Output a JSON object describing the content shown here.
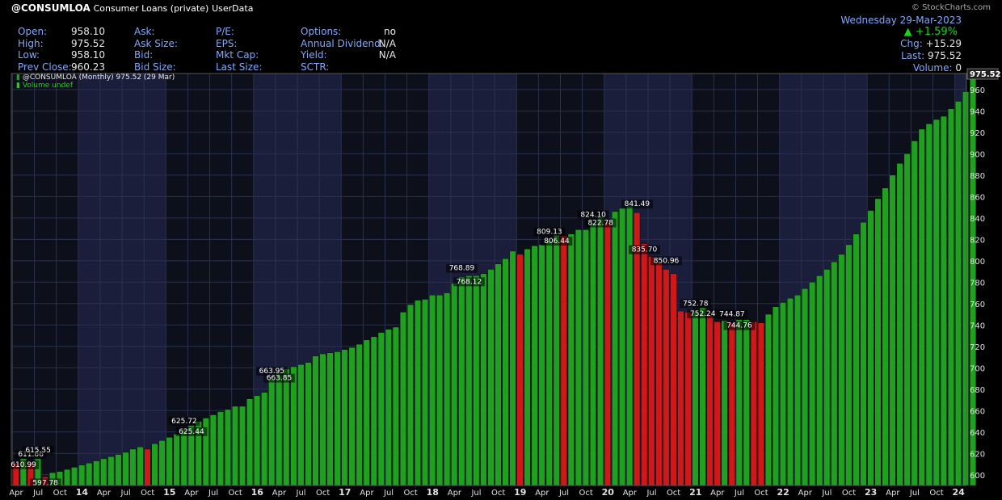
{
  "header": {
    "symbol": "@CONSUMLOA",
    "name": "Consumer Loans (private)",
    "source": "UserData",
    "logo": "© StockCharts.com",
    "quote_left": [
      {
        "label": "Open:",
        "value": "958.10"
      },
      {
        "label": "High:",
        "value": "975.52"
      },
      {
        "label": "Low:",
        "value": "958.10"
      },
      {
        "label": "Prev Close:",
        "value": "960.23"
      }
    ],
    "quote_mid": [
      {
        "label": "Ask:",
        "value": ""
      },
      {
        "label": "Ask Size:",
        "value": ""
      },
      {
        "label": "Bid:",
        "value": ""
      },
      {
        "label": "Bid Size:",
        "value": ""
      }
    ],
    "quote_mid2": [
      {
        "label": "P/E:",
        "value": ""
      },
      {
        "label": "EPS:",
        "value": ""
      },
      {
        "label": "Mkt Cap:",
        "value": ""
      },
      {
        "label": "Last Size:",
        "value": ""
      }
    ],
    "quote_right": [
      {
        "label": "Options:",
        "value": "no"
      },
      {
        "label": "Annual Dividend:",
        "value": "N/A"
      },
      {
        "label": "Yield:",
        "value": "N/A"
      },
      {
        "label": "SCTR:",
        "value": ""
      }
    ],
    "date": "Wednesday  29-Mar-2023",
    "change_pct": "+1.59%",
    "chg": {
      "label": "Chg:",
      "value": "+15.29"
    },
    "last": {
      "label": "Last:",
      "value": "975.52"
    },
    "volume": {
      "label": "Volume:",
      "value": "0"
    }
  },
  "legend": {
    "series": "@CONSUMLOA (Monthly) 975.52 (29 Mar)",
    "volume": "Volume undef"
  },
  "colors": {
    "up": "#1fa01f",
    "down": "#d01818",
    "background": "#000000",
    "plot": "#0d0f1a",
    "band": "#1a1e3a",
    "grid": "#2b3150",
    "axis_text": "#e0e0e0"
  },
  "chart_data": {
    "type": "bar",
    "frequency": "monthly",
    "start": "2013-04",
    "ylim": [
      590,
      975
    ],
    "yticks": [
      600,
      620,
      640,
      660,
      680,
      700,
      720,
      740,
      760,
      780,
      800,
      820,
      840,
      860,
      880,
      900,
      920,
      940,
      960
    ],
    "last_value_label": "975.52",
    "xticks": [
      "Apr",
      "Jul",
      "Oct",
      "14",
      "Apr",
      "Jul",
      "Oct",
      "15",
      "Apr",
      "Jul",
      "Oct",
      "16",
      "Apr",
      "Jul",
      "Oct",
      "17",
      "Apr",
      "Jul",
      "Oct",
      "18",
      "Apr",
      "Jul",
      "Oct",
      "19",
      "Apr",
      "Jul",
      "Oct",
      "20",
      "Apr",
      "Jul",
      "Oct",
      "21",
      "Apr",
      "Jul",
      "Oct",
      "22",
      "Apr",
      "Jul",
      "Oct",
      "23",
      "Apr",
      "Jul",
      "Oct",
      "24"
    ],
    "values": [
      611,
      615,
      611,
      615,
      598,
      602,
      603,
      605,
      607,
      609,
      611,
      613,
      615,
      617,
      619,
      621,
      624,
      626,
      624,
      629,
      632,
      635,
      638,
      642,
      646,
      650,
      653,
      656,
      659,
      661,
      664,
      664,
      671,
      674,
      677,
      689,
      696,
      699,
      701,
      703,
      705,
      711,
      713,
      714,
      715,
      717,
      719,
      722,
      726,
      729,
      733,
      736,
      738,
      752,
      759,
      763,
      764,
      768,
      768,
      770,
      779,
      785,
      786,
      786,
      788,
      792,
      797,
      802,
      809,
      806,
      811,
      814,
      815,
      819,
      824,
      823,
      825,
      829,
      829,
      835,
      841,
      836,
      846,
      849,
      851,
      845,
      816,
      804,
      798,
      792,
      788,
      753,
      752,
      752,
      756,
      749,
      743,
      744,
      742,
      745,
      745,
      743,
      742,
      750,
      757,
      761,
      765,
      768,
      774,
      780,
      786,
      792,
      799,
      806,
      815,
      825,
      836,
      847,
      858,
      868,
      880,
      891,
      900,
      912,
      923,
      928,
      932,
      935,
      942,
      949,
      958,
      975
    ],
    "annotations": [
      {
        "i": 1,
        "text": "610.99",
        "pos": "below"
      },
      {
        "i": 2,
        "text": "611.66",
        "pos": "above"
      },
      {
        "i": 3,
        "text": "615.55",
        "pos": "above"
      },
      {
        "i": 4,
        "text": "597.78",
        "pos": "below"
      },
      {
        "i": 23,
        "text": "625.72",
        "pos": "above"
      },
      {
        "i": 24,
        "text": "625.44",
        "pos": "below"
      },
      {
        "i": 35,
        "text": "663.95",
        "pos": "above"
      },
      {
        "i": 36,
        "text": "663.85",
        "pos": "below"
      },
      {
        "i": 61,
        "text": "768.89",
        "pos": "above"
      },
      {
        "i": 62,
        "text": "768.12",
        "pos": "below"
      },
      {
        "i": 73,
        "text": "809.13",
        "pos": "above"
      },
      {
        "i": 74,
        "text": "806.44",
        "pos": "below"
      },
      {
        "i": 79,
        "text": "824.10",
        "pos": "above"
      },
      {
        "i": 80,
        "text": "822.78",
        "pos": "below"
      },
      {
        "i": 85,
        "text": "841.49",
        "pos": "above"
      },
      {
        "i": 86,
        "text": "835.70",
        "pos": "below"
      },
      {
        "i": 89,
        "text": "850.96",
        "pos": "above"
      },
      {
        "i": 93,
        "text": "752.78",
        "pos": "above"
      },
      {
        "i": 94,
        "text": "752.24",
        "pos": "below"
      },
      {
        "i": 98,
        "text": "744.87",
        "pos": "above"
      },
      {
        "i": 99,
        "text": "744.76",
        "pos": "below"
      }
    ]
  }
}
